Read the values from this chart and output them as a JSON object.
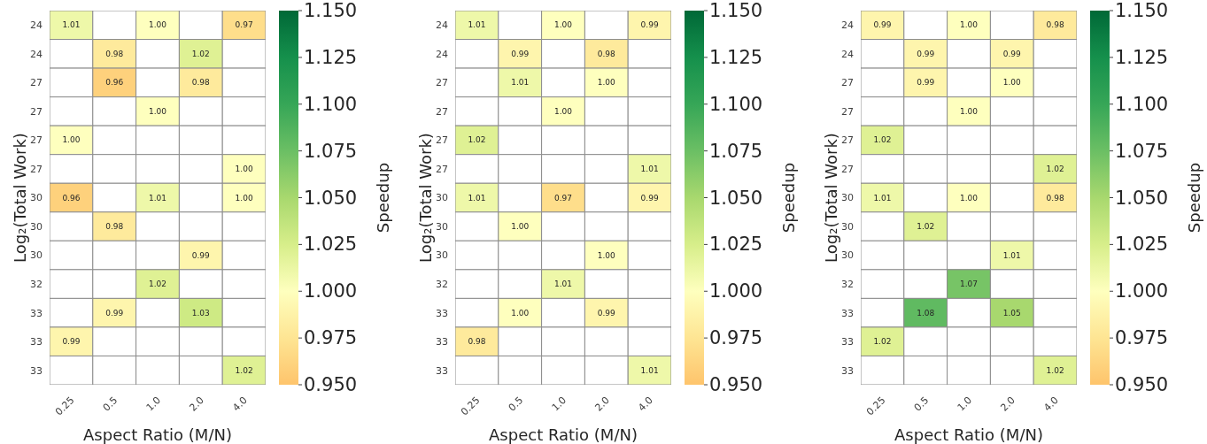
{
  "chart_data": [
    {
      "type": "heatmap",
      "xlabel": "Aspect Ratio (M/N)",
      "ylabel": "Log₂(Total Work)",
      "clabel": "Speedup",
      "categories": [
        "0.25",
        "0.5",
        "1.0",
        "2.0",
        "4.0"
      ],
      "y_categories": [
        "24",
        "24",
        "27",
        "27",
        "27",
        "27",
        "30",
        "30",
        "30",
        "32",
        "33",
        "33",
        "33"
      ],
      "cells": [
        [
          1.01,
          null,
          1.0,
          null,
          0.97
        ],
        [
          null,
          0.98,
          null,
          1.02,
          null
        ],
        [
          null,
          0.96,
          null,
          0.98,
          null
        ],
        [
          null,
          null,
          1.0,
          null,
          null
        ],
        [
          1.0,
          null,
          null,
          null,
          null
        ],
        [
          null,
          null,
          null,
          null,
          1.0
        ],
        [
          0.96,
          null,
          1.01,
          null,
          1.0
        ],
        [
          null,
          0.98,
          null,
          null,
          null
        ],
        [
          null,
          null,
          null,
          0.99,
          null
        ],
        [
          null,
          null,
          1.02,
          null,
          null
        ],
        [
          null,
          0.99,
          null,
          1.03,
          null
        ],
        [
          0.99,
          null,
          null,
          null,
          null
        ],
        [
          null,
          null,
          null,
          null,
          1.02
        ]
      ],
      "cell_labels": [
        [
          "1.01",
          null,
          "1.00",
          null,
          "0.97"
        ],
        [
          null,
          "0.98",
          null,
          "1.02",
          null
        ],
        [
          null,
          "0.96",
          null,
          "0.98",
          null
        ],
        [
          null,
          null,
          "1.00",
          null,
          null
        ],
        [
          "1.00",
          null,
          null,
          null,
          null
        ],
        [
          null,
          null,
          null,
          null,
          "1.00"
        ],
        [
          "0.96",
          null,
          "1.01",
          null,
          "1.00"
        ],
        [
          null,
          "0.98",
          null,
          null,
          null
        ],
        [
          null,
          null,
          null,
          "0.99",
          null
        ],
        [
          null,
          null,
          "1.02",
          null,
          null
        ],
        [
          null,
          "0.99",
          null,
          "1.03",
          null
        ],
        [
          "0.99",
          null,
          null,
          null,
          null
        ],
        [
          null,
          null,
          null,
          null,
          "1.02"
        ]
      ],
      "clim": [
        0.95,
        1.15
      ],
      "cticks": [
        {
          "value": 0.95,
          "label": "0.950"
        },
        {
          "value": 0.975,
          "label": "0.975"
        },
        {
          "value": 1.0,
          "label": "1.000"
        },
        {
          "value": 1.025,
          "label": "1.025"
        },
        {
          "value": 1.05,
          "label": "1.050"
        },
        {
          "value": 1.075,
          "label": "1.075"
        },
        {
          "value": 1.1,
          "label": "1.100"
        },
        {
          "value": 1.125,
          "label": "1.125"
        },
        {
          "value": 1.15,
          "label": "1.150"
        }
      ]
    },
    {
      "type": "heatmap",
      "xlabel": "Aspect Ratio (M/N)",
      "ylabel": "Log₂(Total Work)",
      "clabel": "Speedup",
      "categories": [
        "0.25",
        "0.5",
        "1.0",
        "2.0",
        "4.0"
      ],
      "y_categories": [
        "24",
        "24",
        "27",
        "27",
        "27",
        "27",
        "30",
        "30",
        "30",
        "32",
        "33",
        "33",
        "33"
      ],
      "cells": [
        [
          1.01,
          null,
          1.0,
          null,
          0.99
        ],
        [
          null,
          0.99,
          null,
          0.98,
          null
        ],
        [
          null,
          1.01,
          null,
          1.0,
          null
        ],
        [
          null,
          null,
          1.0,
          null,
          null
        ],
        [
          1.02,
          null,
          null,
          null,
          null
        ],
        [
          null,
          null,
          null,
          null,
          1.01
        ],
        [
          1.01,
          null,
          0.97,
          null,
          0.99
        ],
        [
          null,
          1.0,
          null,
          null,
          null
        ],
        [
          null,
          null,
          null,
          1.0,
          null
        ],
        [
          null,
          null,
          1.01,
          null,
          null
        ],
        [
          null,
          1.0,
          null,
          0.99,
          null
        ],
        [
          0.98,
          null,
          null,
          null,
          null
        ],
        [
          null,
          null,
          null,
          null,
          1.01
        ]
      ],
      "cell_labels": [
        [
          "1.01",
          null,
          "1.00",
          null,
          "0.99"
        ],
        [
          null,
          "0.99",
          null,
          "0.98",
          null
        ],
        [
          null,
          "1.01",
          null,
          "1.00",
          null
        ],
        [
          null,
          null,
          "1.00",
          null,
          null
        ],
        [
          "1.02",
          null,
          null,
          null,
          null
        ],
        [
          null,
          null,
          null,
          null,
          "1.01"
        ],
        [
          "1.01",
          null,
          "0.97",
          null,
          "0.99"
        ],
        [
          null,
          "1.00",
          null,
          null,
          null
        ],
        [
          null,
          null,
          null,
          "1.00",
          null
        ],
        [
          null,
          null,
          "1.01",
          null,
          null
        ],
        [
          null,
          "1.00",
          null,
          "0.99",
          null
        ],
        [
          "0.98",
          null,
          null,
          null,
          null
        ],
        [
          null,
          null,
          null,
          null,
          "1.01"
        ]
      ],
      "clim": [
        0.95,
        1.15
      ],
      "cticks": [
        {
          "value": 0.95,
          "label": "0.950"
        },
        {
          "value": 0.975,
          "label": "0.975"
        },
        {
          "value": 1.0,
          "label": "1.000"
        },
        {
          "value": 1.025,
          "label": "1.025"
        },
        {
          "value": 1.05,
          "label": "1.050"
        },
        {
          "value": 1.075,
          "label": "1.075"
        },
        {
          "value": 1.1,
          "label": "1.100"
        },
        {
          "value": 1.125,
          "label": "1.125"
        },
        {
          "value": 1.15,
          "label": "1.150"
        }
      ]
    },
    {
      "type": "heatmap",
      "xlabel": "Aspect Ratio (M/N)",
      "ylabel": "Log₂(Total Work)",
      "clabel": "Speedup",
      "categories": [
        "0.25",
        "0.5",
        "1.0",
        "2.0",
        "4.0"
      ],
      "y_categories": [
        "24",
        "24",
        "27",
        "27",
        "27",
        "27",
        "30",
        "30",
        "30",
        "32",
        "33",
        "33",
        "33"
      ],
      "cells": [
        [
          0.99,
          null,
          1.0,
          null,
          0.98
        ],
        [
          null,
          0.99,
          null,
          0.99,
          null
        ],
        [
          null,
          0.99,
          null,
          1.0,
          null
        ],
        [
          null,
          null,
          1.0,
          null,
          null
        ],
        [
          1.02,
          null,
          null,
          null,
          null
        ],
        [
          null,
          null,
          null,
          null,
          1.02
        ],
        [
          1.01,
          null,
          1.0,
          null,
          0.98
        ],
        [
          null,
          1.02,
          null,
          null,
          null
        ],
        [
          null,
          null,
          null,
          1.01,
          null
        ],
        [
          null,
          null,
          1.07,
          null,
          null
        ],
        [
          null,
          1.08,
          null,
          1.05,
          null
        ],
        [
          1.02,
          null,
          null,
          null,
          null
        ],
        [
          null,
          null,
          null,
          null,
          1.02
        ]
      ],
      "cell_labels": [
        [
          "0.99",
          null,
          "1.00",
          null,
          "0.98"
        ],
        [
          null,
          "0.99",
          null,
          "0.99",
          null
        ],
        [
          null,
          "0.99",
          null,
          "1.00",
          null
        ],
        [
          null,
          null,
          "1.00",
          null,
          null
        ],
        [
          "1.02",
          null,
          null,
          null,
          null
        ],
        [
          null,
          null,
          null,
          null,
          "1.02"
        ],
        [
          "1.01",
          null,
          "1.00",
          null,
          "0.98"
        ],
        [
          null,
          "1.02",
          null,
          null,
          null
        ],
        [
          null,
          null,
          null,
          "1.01",
          null
        ],
        [
          null,
          null,
          "1.07",
          null,
          null
        ],
        [
          null,
          "1.08",
          null,
          "1.05",
          null
        ],
        [
          "1.02",
          null,
          null,
          null,
          null
        ],
        [
          null,
          null,
          null,
          null,
          "1.02"
        ]
      ],
      "clim": [
        0.95,
        1.15
      ],
      "cticks": [
        {
          "value": 0.95,
          "label": "0.950"
        },
        {
          "value": 0.975,
          "label": "0.975"
        },
        {
          "value": 1.0,
          "label": "1.000"
        },
        {
          "value": 1.025,
          "label": "1.025"
        },
        {
          "value": 1.05,
          "label": "1.050"
        },
        {
          "value": 1.075,
          "label": "1.075"
        },
        {
          "value": 1.1,
          "label": "1.100"
        },
        {
          "value": 1.125,
          "label": "1.125"
        },
        {
          "value": 1.15,
          "label": "1.150"
        }
      ]
    }
  ]
}
